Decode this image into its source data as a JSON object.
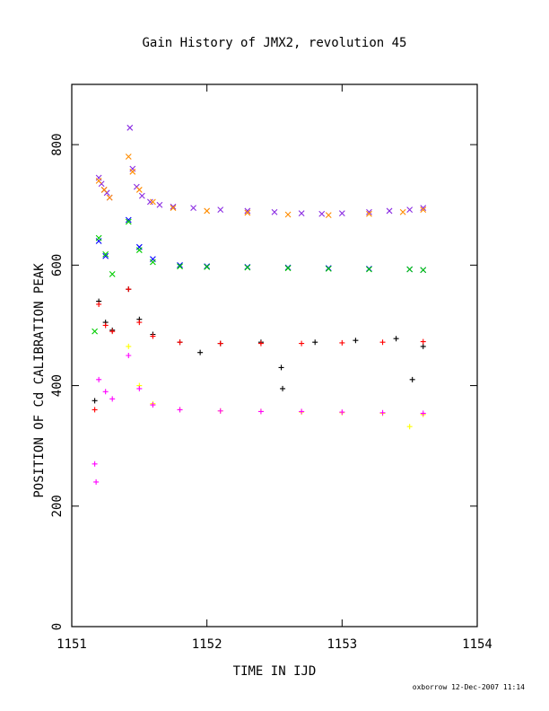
{
  "chart_data": {
    "type": "scatter",
    "title": "Gain History of JMX2, revolution 45",
    "xlabel": "TIME IN IJD",
    "ylabel": "POSITION OF Cd CALIBRATION PEAK",
    "xlim": [
      1151,
      1154
    ],
    "ylim": [
      0,
      900
    ],
    "x_ticks": [
      1151,
      1152,
      1153,
      1154
    ],
    "y_ticks": [
      0,
      200,
      400,
      600,
      800
    ],
    "footer": "oxborrow 12-Dec-2007 11:14",
    "grid": false,
    "series": [
      {
        "color": "#8a2be2",
        "marker": "x",
        "points": [
          [
            1151.2,
            745
          ],
          [
            1151.22,
            735
          ],
          [
            1151.24,
            725
          ],
          [
            1151.26,
            720
          ],
          [
            1151.28,
            712
          ],
          [
            1151.43,
            828
          ],
          [
            1151.45,
            760
          ],
          [
            1151.48,
            730
          ],
          [
            1151.52,
            715
          ],
          [
            1151.58,
            705
          ],
          [
            1151.65,
            700
          ],
          [
            1151.75,
            697
          ],
          [
            1151.9,
            695
          ],
          [
            1152.1,
            692
          ],
          [
            1152.3,
            690
          ],
          [
            1152.5,
            688
          ],
          [
            1152.7,
            686
          ],
          [
            1152.85,
            685
          ],
          [
            1153.0,
            686
          ],
          [
            1153.2,
            688
          ],
          [
            1153.35,
            690
          ],
          [
            1153.5,
            692
          ],
          [
            1153.6,
            695
          ]
        ]
      },
      {
        "color": "#ff8c00",
        "marker": "x",
        "points": [
          [
            1151.2,
            740
          ],
          [
            1151.24,
            725
          ],
          [
            1151.28,
            712
          ],
          [
            1151.42,
            780
          ],
          [
            1151.45,
            755
          ],
          [
            1151.5,
            725
          ],
          [
            1151.6,
            705
          ],
          [
            1151.75,
            695
          ],
          [
            1152.0,
            690
          ],
          [
            1152.3,
            687
          ],
          [
            1152.6,
            684
          ],
          [
            1152.9,
            683
          ],
          [
            1153.2,
            685
          ],
          [
            1153.45,
            688
          ],
          [
            1153.6,
            692
          ]
        ]
      },
      {
        "color": "#0000ff",
        "marker": "x",
        "points": [
          [
            1151.2,
            640
          ],
          [
            1151.25,
            615
          ],
          [
            1151.42,
            675
          ],
          [
            1151.5,
            630
          ],
          [
            1151.6,
            610
          ],
          [
            1151.8,
            600
          ],
          [
            1152.0,
            598
          ],
          [
            1152.3,
            597
          ],
          [
            1152.6,
            596
          ],
          [
            1152.9,
            595
          ],
          [
            1153.2,
            594
          ],
          [
            1153.5,
            593
          ],
          [
            1153.6,
            592
          ]
        ]
      },
      {
        "color": "#00cc00",
        "marker": "x",
        "points": [
          [
            1151.17,
            490
          ],
          [
            1151.2,
            645
          ],
          [
            1151.25,
            618
          ],
          [
            1151.3,
            585
          ],
          [
            1151.42,
            672
          ],
          [
            1151.5,
            625
          ],
          [
            1151.6,
            605
          ],
          [
            1151.8,
            598
          ],
          [
            1152.0,
            597
          ],
          [
            1152.3,
            596
          ],
          [
            1152.6,
            595
          ],
          [
            1152.9,
            594
          ],
          [
            1153.2,
            593
          ],
          [
            1153.5,
            593
          ],
          [
            1153.6,
            592
          ]
        ]
      },
      {
        "color": "#000000",
        "marker": "+",
        "points": [
          [
            1151.17,
            375
          ],
          [
            1151.2,
            540
          ],
          [
            1151.25,
            505
          ],
          [
            1151.3,
            492
          ],
          [
            1151.42,
            560
          ],
          [
            1151.5,
            510
          ],
          [
            1151.6,
            485
          ],
          [
            1151.8,
            472
          ],
          [
            1151.95,
            455
          ],
          [
            1152.1,
            470
          ],
          [
            1152.4,
            472
          ],
          [
            1152.55,
            430
          ],
          [
            1152.56,
            395
          ],
          [
            1152.8,
            472
          ],
          [
            1153.1,
            475
          ],
          [
            1153.4,
            478
          ],
          [
            1153.52,
            410
          ],
          [
            1153.6,
            465
          ]
        ]
      },
      {
        "color": "#ff0000",
        "marker": "+",
        "points": [
          [
            1151.17,
            360
          ],
          [
            1151.2,
            535
          ],
          [
            1151.25,
            500
          ],
          [
            1151.3,
            490
          ],
          [
            1151.42,
            560
          ],
          [
            1151.5,
            505
          ],
          [
            1151.6,
            482
          ],
          [
            1151.8,
            472
          ],
          [
            1152.1,
            470
          ],
          [
            1152.4,
            470
          ],
          [
            1152.7,
            470
          ],
          [
            1153.0,
            471
          ],
          [
            1153.3,
            472
          ],
          [
            1153.6,
            473
          ]
        ]
      },
      {
        "color": "#ffff00",
        "marker": "+",
        "points": [
          [
            1151.42,
            465
          ],
          [
            1151.5,
            400
          ],
          [
            1151.6,
            370
          ],
          [
            1151.8,
            360
          ],
          [
            1152.1,
            358
          ],
          [
            1152.4,
            357
          ],
          [
            1152.7,
            356
          ],
          [
            1153.0,
            355
          ],
          [
            1153.3,
            354
          ],
          [
            1153.5,
            332
          ],
          [
            1153.6,
            352
          ]
        ]
      },
      {
        "color": "#ff00ff",
        "marker": "+",
        "points": [
          [
            1151.17,
            270
          ],
          [
            1151.18,
            240
          ],
          [
            1151.2,
            410
          ],
          [
            1151.25,
            390
          ],
          [
            1151.3,
            378
          ],
          [
            1151.42,
            450
          ],
          [
            1151.5,
            395
          ],
          [
            1151.6,
            368
          ],
          [
            1151.8,
            360
          ],
          [
            1152.1,
            358
          ],
          [
            1152.4,
            357
          ],
          [
            1152.7,
            357
          ],
          [
            1153.0,
            356
          ],
          [
            1153.3,
            355
          ],
          [
            1153.6,
            354
          ]
        ]
      }
    ]
  }
}
